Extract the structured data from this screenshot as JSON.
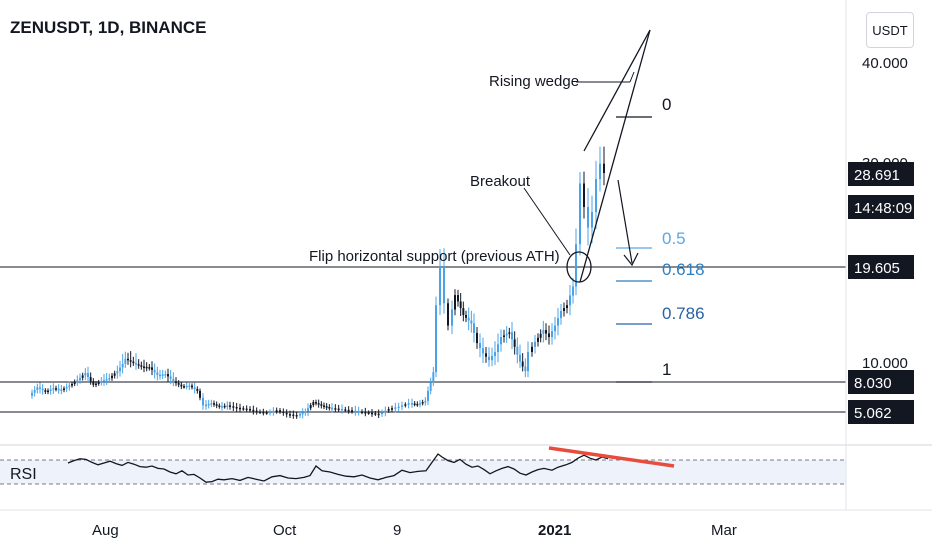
{
  "header": {
    "title": "ZENUSDT, 1D, BINANCE",
    "unit_button": "USDT"
  },
  "rsi_label": "RSI",
  "chart_data": {
    "type": "candlestick",
    "symbol": "ZENUSDT",
    "interval": "1D",
    "exchange": "BINANCE",
    "price_axis": {
      "ticks": [
        "40.000",
        "30.000",
        "10.000"
      ],
      "price_labels": [
        {
          "text": "28.691",
          "value": 28.691
        },
        {
          "text": "14:48:09"
        },
        {
          "text": "19.605",
          "value": 19.605
        },
        {
          "text": "8.030",
          "value": 8.03
        },
        {
          "text": "5.062",
          "value": 5.062
        }
      ]
    },
    "time_axis": {
      "labels": [
        "Aug",
        "Oct",
        "9",
        "2021",
        "Mar"
      ],
      "bold_labels": [
        "2021"
      ]
    },
    "horizontal_levels": [
      19.605,
      8.03,
      5.062
    ],
    "fibonacci_levels": [
      {
        "label": "0",
        "color": "#131722"
      },
      {
        "label": "0.5",
        "color": "#5aa8e6"
      },
      {
        "label": "0.618",
        "color": "#2d7fc1"
      },
      {
        "label": "0.786",
        "color": "#2962a8"
      },
      {
        "label": "1",
        "color": "#131722"
      }
    ],
    "annotations": [
      "Rising wedge",
      "Breakout",
      "Flip horizontal support (previous ATH)"
    ],
    "price_path": [
      [
        32,
        6.5
      ],
      [
        40,
        7.4
      ],
      [
        48,
        6.9
      ],
      [
        56,
        7.3
      ],
      [
        64,
        7.1
      ],
      [
        72,
        7.6
      ],
      [
        80,
        8.2
      ],
      [
        88,
        8.9
      ],
      [
        96,
        7.7
      ],
      [
        104,
        8.1
      ],
      [
        112,
        8.4
      ],
      [
        120,
        9.1
      ],
      [
        128,
        10.3
      ],
      [
        136,
        10.0
      ],
      [
        144,
        9.6
      ],
      [
        152,
        9.5
      ],
      [
        160,
        8.7
      ],
      [
        168,
        8.8
      ],
      [
        176,
        8.1
      ],
      [
        184,
        7.5
      ],
      [
        192,
        7.6
      ],
      [
        200,
        7.0
      ],
      [
        206,
        5.6
      ],
      [
        214,
        5.8
      ],
      [
        222,
        5.5
      ],
      [
        230,
        5.6
      ],
      [
        240,
        5.4
      ],
      [
        250,
        5.3
      ],
      [
        260,
        5.1
      ],
      [
        270,
        5.0
      ],
      [
        280,
        5.2
      ],
      [
        290,
        4.9
      ],
      [
        300,
        4.8
      ],
      [
        308,
        5.1
      ],
      [
        316,
        5.9
      ],
      [
        324,
        5.6
      ],
      [
        332,
        5.4
      ],
      [
        342,
        5.3
      ],
      [
        352,
        5.2
      ],
      [
        362,
        5.1
      ],
      [
        372,
        5.0
      ],
      [
        382,
        4.9
      ],
      [
        392,
        5.3
      ],
      [
        402,
        5.5
      ],
      [
        412,
        5.8
      ],
      [
        420,
        5.7
      ],
      [
        428,
        6.0
      ],
      [
        436,
        9.0
      ],
      [
        440,
        15.0
      ],
      [
        444,
        19.6
      ],
      [
        448,
        15.2
      ],
      [
        452,
        13.0
      ],
      [
        458,
        16.1
      ],
      [
        466,
        14.0
      ],
      [
        474,
        13.2
      ],
      [
        480,
        11.5
      ],
      [
        486,
        10.7
      ],
      [
        492,
        10.2
      ],
      [
        498,
        10.8
      ],
      [
        504,
        12.0
      ],
      [
        512,
        12.4
      ],
      [
        520,
        10.6
      ],
      [
        528,
        9.1
      ],
      [
        532,
        10.8
      ],
      [
        538,
        11.6
      ],
      [
        546,
        12.6
      ],
      [
        552,
        12.0
      ],
      [
        558,
        13.0
      ],
      [
        564,
        14.4
      ],
      [
        570,
        15.0
      ],
      [
        576,
        17.1
      ],
      [
        580,
        21.5
      ],
      [
        584,
        27.5
      ],
      [
        588,
        25.0
      ],
      [
        592,
        23.0
      ],
      [
        596,
        24.5
      ],
      [
        600,
        28.0
      ],
      [
        604,
        29.8
      ],
      [
        608,
        28.691
      ]
    ],
    "rsi": {
      "upper_band": 70,
      "lower_band": 30,
      "divergence_line": "red, falling",
      "values": [
        [
          68,
          65
        ],
        [
          74,
          69
        ],
        [
          80,
          72
        ],
        [
          86,
          71
        ],
        [
          92,
          66
        ],
        [
          98,
          62
        ],
        [
          104,
          65
        ],
        [
          110,
          68
        ],
        [
          116,
          64
        ],
        [
          122,
          61
        ],
        [
          128,
          66
        ],
        [
          134,
          63
        ],
        [
          140,
          59
        ],
        [
          146,
          58
        ],
        [
          152,
          60
        ],
        [
          158,
          56
        ],
        [
          164,
          55
        ],
        [
          170,
          50
        ],
        [
          176,
          47
        ],
        [
          182,
          52
        ],
        [
          188,
          45
        ],
        [
          194,
          46
        ],
        [
          200,
          40
        ],
        [
          206,
          33
        ],
        [
          212,
          34
        ],
        [
          218,
          38
        ],
        [
          224,
          37
        ],
        [
          232,
          39
        ],
        [
          240,
          36
        ],
        [
          248,
          41
        ],
        [
          256,
          38
        ],
        [
          264,
          35
        ],
        [
          272,
          42
        ],
        [
          280,
          44
        ],
        [
          288,
          40
        ],
        [
          296,
          39
        ],
        [
          304,
          41
        ],
        [
          310,
          44
        ],
        [
          316,
          60
        ],
        [
          322,
          52
        ],
        [
          330,
          50
        ],
        [
          338,
          46
        ],
        [
          346,
          43
        ],
        [
          354,
          42
        ],
        [
          362,
          45
        ],
        [
          370,
          40
        ],
        [
          378,
          37
        ],
        [
          386,
          41
        ],
        [
          394,
          44
        ],
        [
          402,
          53
        ],
        [
          410,
          49
        ],
        [
          418,
          51
        ],
        [
          426,
          52
        ],
        [
          432,
          66
        ],
        [
          438,
          80
        ],
        [
          442,
          75
        ],
        [
          448,
          69
        ],
        [
          454,
          66
        ],
        [
          460,
          71
        ],
        [
          466,
          63
        ],
        [
          472,
          58
        ],
        [
          478,
          60
        ],
        [
          484,
          54
        ],
        [
          490,
          47
        ],
        [
          496,
          52
        ],
        [
          502,
          56
        ],
        [
          508,
          59
        ],
        [
          514,
          55
        ],
        [
          520,
          48
        ],
        [
          526,
          45
        ],
        [
          532,
          50
        ],
        [
          538,
          54
        ],
        [
          544,
          56
        ],
        [
          552,
          53
        ],
        [
          558,
          58
        ],
        [
          566,
          62
        ],
        [
          572,
          66
        ],
        [
          578,
          73
        ],
        [
          584,
          78
        ],
        [
          590,
          73
        ],
        [
          596,
          70
        ],
        [
          602,
          75
        ],
        [
          608,
          72
        ]
      ]
    }
  },
  "colors": {
    "up": "#4aa3e8",
    "down": "#131722",
    "level_line": "#131722",
    "rsi_line": "#131722",
    "rsi_band_fill": "#eef2fb",
    "divergence": "#e84c3d",
    "label_bg": "#131722",
    "label_text": "#ffffff"
  }
}
